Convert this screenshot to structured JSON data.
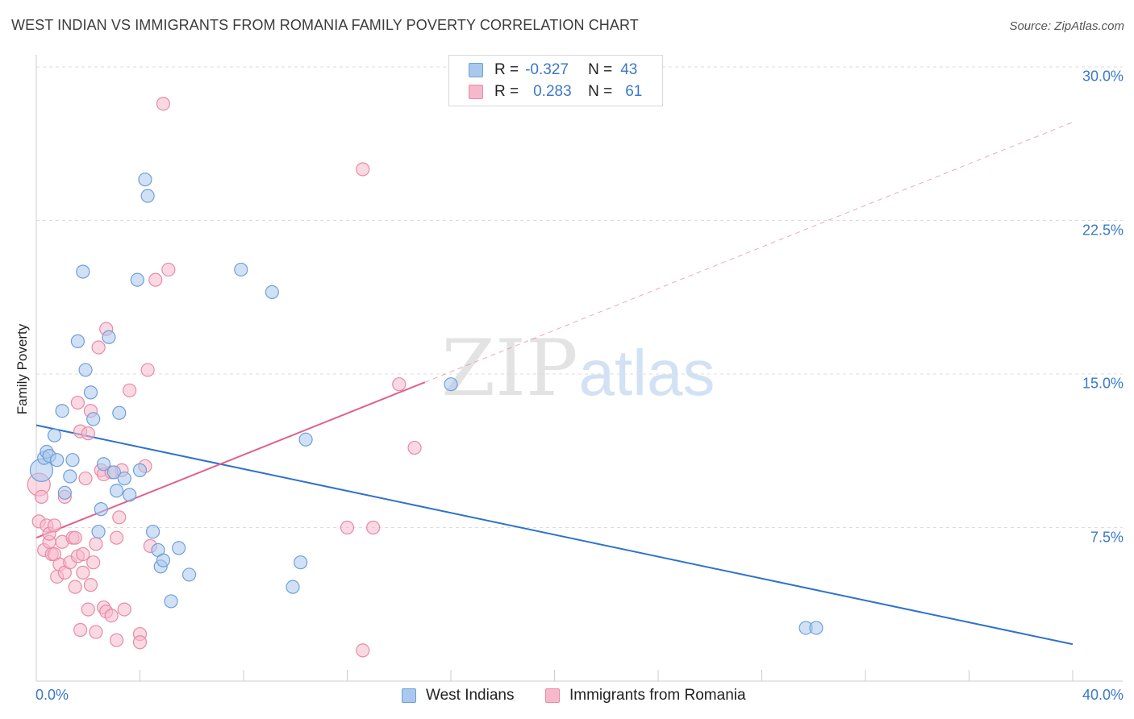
{
  "title": "WEST INDIAN VS IMMIGRANTS FROM ROMANIA FAMILY POVERTY CORRELATION CHART",
  "source": "Source: ZipAtlas.com",
  "watermark": {
    "zip": "ZIP",
    "atlas": "atlas"
  },
  "legend": {
    "series1": {
      "r_label": "R =",
      "r_value": "-0.327",
      "n_label": "N =",
      "n_value": "43"
    },
    "series2": {
      "r_label": "R =",
      "r_value": "0.283",
      "n_label": "N =",
      "n_value": "61"
    }
  },
  "colors": {
    "blue_fill": "#a9c8ee",
    "blue_stroke": "#6f9fd8",
    "blue_line": "#2f72cc",
    "pink_fill": "#f6b9cc",
    "pink_stroke": "#e88aa7",
    "pink_line": "#e0608a",
    "tick_text": "#3a78c8",
    "grid": "#dddddd"
  },
  "chart_data": {
    "type": "scatter",
    "title": "WEST INDIAN VS IMMIGRANTS FROM ROMANIA FAMILY POVERTY CORRELATION CHART",
    "xlabel": "",
    "ylabel": "Family Poverty",
    "xlim": [
      0,
      40
    ],
    "ylim": [
      0,
      30
    ],
    "x_tick_labels": [
      "0.0%",
      "40.0%"
    ],
    "y_ticks": [
      7.5,
      15.0,
      22.5,
      30.0
    ],
    "y_tick_labels": [
      "7.5%",
      "15.0%",
      "22.5%",
      "30.0%"
    ],
    "series": [
      {
        "name": "West Indians",
        "color": "blue",
        "r": -0.327,
        "n": 43,
        "trend": {
          "x": [
            0,
            40
          ],
          "y": [
            12.5,
            1.8
          ],
          "dashed_extension": false
        },
        "points": [
          {
            "x": 0.2,
            "y": 10.3,
            "big": true
          },
          {
            "x": 0.3,
            "y": 10.9
          },
          {
            "x": 0.4,
            "y": 11.2
          },
          {
            "x": 0.5,
            "y": 11.0
          },
          {
            "x": 0.7,
            "y": 12.0
          },
          {
            "x": 0.8,
            "y": 10.8
          },
          {
            "x": 1.0,
            "y": 13.2
          },
          {
            "x": 1.1,
            "y": 9.2
          },
          {
            "x": 1.3,
            "y": 10.0
          },
          {
            "x": 1.4,
            "y": 10.8
          },
          {
            "x": 1.6,
            "y": 16.6
          },
          {
            "x": 1.8,
            "y": 20.0
          },
          {
            "x": 1.9,
            "y": 15.2
          },
          {
            "x": 2.1,
            "y": 14.1
          },
          {
            "x": 2.2,
            "y": 12.8
          },
          {
            "x": 2.4,
            "y": 7.3
          },
          {
            "x": 2.5,
            "y": 8.4
          },
          {
            "x": 2.6,
            "y": 10.6
          },
          {
            "x": 2.8,
            "y": 16.8
          },
          {
            "x": 3.0,
            "y": 10.2
          },
          {
            "x": 3.1,
            "y": 9.3
          },
          {
            "x": 3.2,
            "y": 13.1
          },
          {
            "x": 3.4,
            "y": 9.9
          },
          {
            "x": 3.6,
            "y": 9.1
          },
          {
            "x": 3.9,
            "y": 19.6
          },
          {
            "x": 4.0,
            "y": 10.3
          },
          {
            "x": 4.2,
            "y": 24.5
          },
          {
            "x": 4.3,
            "y": 23.7
          },
          {
            "x": 4.5,
            "y": 7.3
          },
          {
            "x": 4.7,
            "y": 6.4
          },
          {
            "x": 4.8,
            "y": 5.6
          },
          {
            "x": 4.9,
            "y": 5.9
          },
          {
            "x": 5.2,
            "y": 3.9
          },
          {
            "x": 5.5,
            "y": 6.5
          },
          {
            "x": 5.9,
            "y": 5.2
          },
          {
            "x": 7.9,
            "y": 20.1
          },
          {
            "x": 9.1,
            "y": 19.0
          },
          {
            "x": 9.9,
            "y": 4.6
          },
          {
            "x": 10.2,
            "y": 5.8
          },
          {
            "x": 10.4,
            "y": 11.8
          },
          {
            "x": 16.0,
            "y": 14.5
          },
          {
            "x": 29.7,
            "y": 2.6
          },
          {
            "x": 30.1,
            "y": 2.6
          }
        ]
      },
      {
        "name": "Immigrants from Romania",
        "color": "pink",
        "r": 0.283,
        "n": 61,
        "trend": {
          "x": [
            0,
            15
          ],
          "y": [
            7.0,
            14.6
          ],
          "dashed_extension_to": {
            "x": 40,
            "y": 27.3
          }
        },
        "points": [
          {
            "x": 0.1,
            "y": 9.6,
            "big": true
          },
          {
            "x": 0.1,
            "y": 7.8
          },
          {
            "x": 0.2,
            "y": 9.0
          },
          {
            "x": 0.3,
            "y": 6.4
          },
          {
            "x": 0.4,
            "y": 7.6
          },
          {
            "x": 0.5,
            "y": 6.8
          },
          {
            "x": 0.5,
            "y": 7.2
          },
          {
            "x": 0.6,
            "y": 6.2
          },
          {
            "x": 0.7,
            "y": 7.6
          },
          {
            "x": 0.7,
            "y": 6.2
          },
          {
            "x": 0.8,
            "y": 5.1
          },
          {
            "x": 0.9,
            "y": 5.7
          },
          {
            "x": 1.0,
            "y": 6.8
          },
          {
            "x": 1.1,
            "y": 5.3
          },
          {
            "x": 1.1,
            "y": 9.0
          },
          {
            "x": 1.3,
            "y": 5.8
          },
          {
            "x": 1.4,
            "y": 7.0
          },
          {
            "x": 1.5,
            "y": 4.6
          },
          {
            "x": 1.5,
            "y": 7.0
          },
          {
            "x": 1.6,
            "y": 6.1
          },
          {
            "x": 1.6,
            "y": 13.6
          },
          {
            "x": 1.7,
            "y": 2.5
          },
          {
            "x": 1.7,
            "y": 12.2
          },
          {
            "x": 1.8,
            "y": 5.3
          },
          {
            "x": 1.8,
            "y": 6.2
          },
          {
            "x": 1.9,
            "y": 9.9
          },
          {
            "x": 2.0,
            "y": 3.5
          },
          {
            "x": 2.0,
            "y": 12.1
          },
          {
            "x": 2.1,
            "y": 13.2
          },
          {
            "x": 2.1,
            "y": 4.7
          },
          {
            "x": 2.2,
            "y": 5.8
          },
          {
            "x": 2.3,
            "y": 2.4
          },
          {
            "x": 2.3,
            "y": 6.7
          },
          {
            "x": 2.4,
            "y": 16.3
          },
          {
            "x": 2.5,
            "y": 10.3
          },
          {
            "x": 2.6,
            "y": 3.6
          },
          {
            "x": 2.6,
            "y": 10.1
          },
          {
            "x": 2.7,
            "y": 17.2
          },
          {
            "x": 2.7,
            "y": 3.4
          },
          {
            "x": 2.9,
            "y": 3.2
          },
          {
            "x": 3.1,
            "y": 7.0
          },
          {
            "x": 3.1,
            "y": 2.0
          },
          {
            "x": 3.2,
            "y": 8.0
          },
          {
            "x": 3.3,
            "y": 10.3
          },
          {
            "x": 3.4,
            "y": 3.5
          },
          {
            "x": 3.6,
            "y": 14.2
          },
          {
            "x": 4.0,
            "y": 2.3
          },
          {
            "x": 4.0,
            "y": 1.9
          },
          {
            "x": 4.2,
            "y": 10.5
          },
          {
            "x": 4.3,
            "y": 15.2
          },
          {
            "x": 4.4,
            "y": 6.6
          },
          {
            "x": 4.6,
            "y": 19.6
          },
          {
            "x": 4.9,
            "y": 28.2
          },
          {
            "x": 5.1,
            "y": 20.1
          },
          {
            "x": 12.0,
            "y": 7.5
          },
          {
            "x": 12.6,
            "y": 1.5
          },
          {
            "x": 12.6,
            "y": 25.0
          },
          {
            "x": 13.0,
            "y": 7.5
          },
          {
            "x": 14.6,
            "y": 11.4
          },
          {
            "x": 14.0,
            "y": 14.5
          },
          {
            "x": 2.9,
            "y": 10.2
          }
        ]
      }
    ]
  }
}
